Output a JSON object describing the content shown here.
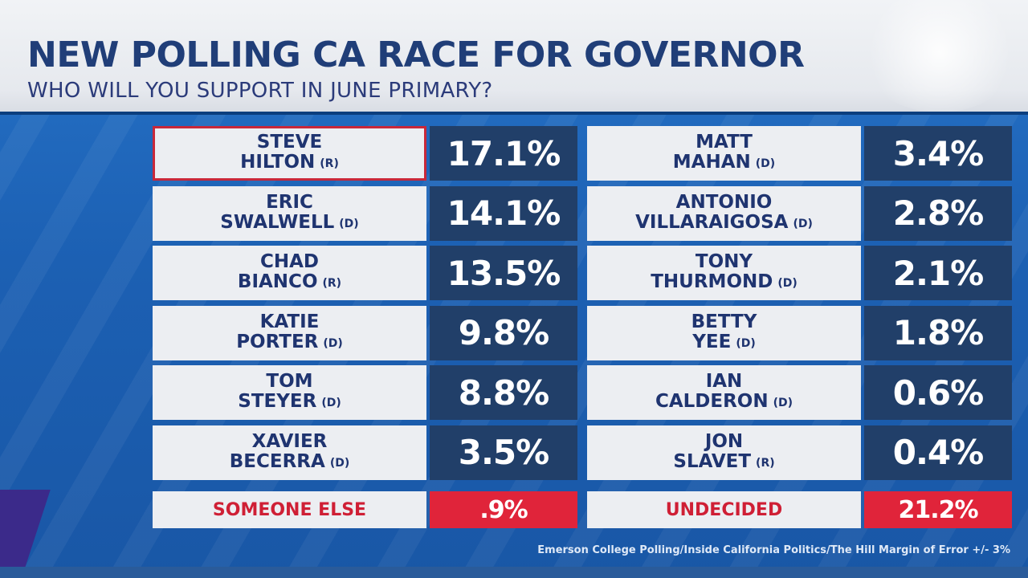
{
  "header": {
    "title": "NEW POLLING CA RACE FOR GOVERNOR",
    "subtitle": "WHO WILL YOU SUPPORT IN JUNE PRIMARY?"
  },
  "colors": {
    "name_text": "#1f3470",
    "pct_bg": "#213f69",
    "highlight_border": "#c8283a",
    "other_text": "#cf1f35",
    "other_pct_bg": "#e0243a"
  },
  "left_column": [
    {
      "first": "STEVE",
      "last": "HILTON",
      "party": "(R)",
      "pct": "17.1%",
      "highlighted": true
    },
    {
      "first": "ERIC",
      "last": "SWALWELL",
      "party": "(D)",
      "pct": "14.1%"
    },
    {
      "first": "CHAD",
      "last": "BIANCO",
      "party": "(R)",
      "pct": "13.5%"
    },
    {
      "first": "KATIE",
      "last": "PORTER",
      "party": "(D)",
      "pct": "9.8%"
    },
    {
      "first": "TOM",
      "last": "STEYER",
      "party": "(D)",
      "pct": "8.8%"
    },
    {
      "first": "XAVIER",
      "last": "BECERRA",
      "party": "(D)",
      "pct": "3.5%"
    }
  ],
  "right_column": [
    {
      "first": "MATT",
      "last": "MAHAN",
      "party": "(D)",
      "pct": "3.4%"
    },
    {
      "first": "ANTONIO",
      "last": "VILLARAIGOSA",
      "party": "(D)",
      "pct": "2.8%"
    },
    {
      "first": "TONY",
      "last": "THURMOND",
      "party": "(D)",
      "pct": "2.1%"
    },
    {
      "first": "BETTY",
      "last": "YEE",
      "party": "(D)",
      "pct": "1.8%"
    },
    {
      "first": "IAN",
      "last": "CALDERON",
      "party": "(D)",
      "pct": "0.6%"
    },
    {
      "first": "JON",
      "last": "SLAVET",
      "party": "(R)",
      "pct": "0.4%"
    }
  ],
  "other": {
    "someone_else_label": "SOMEONE ELSE",
    "someone_else_pct": ".9%",
    "undecided_label": "UNDECIDED",
    "undecided_pct": "21.2%"
  },
  "footer": {
    "source": "Emerson College Polling/Inside California Politics/The Hill Margin of Error +/- 3%"
  }
}
